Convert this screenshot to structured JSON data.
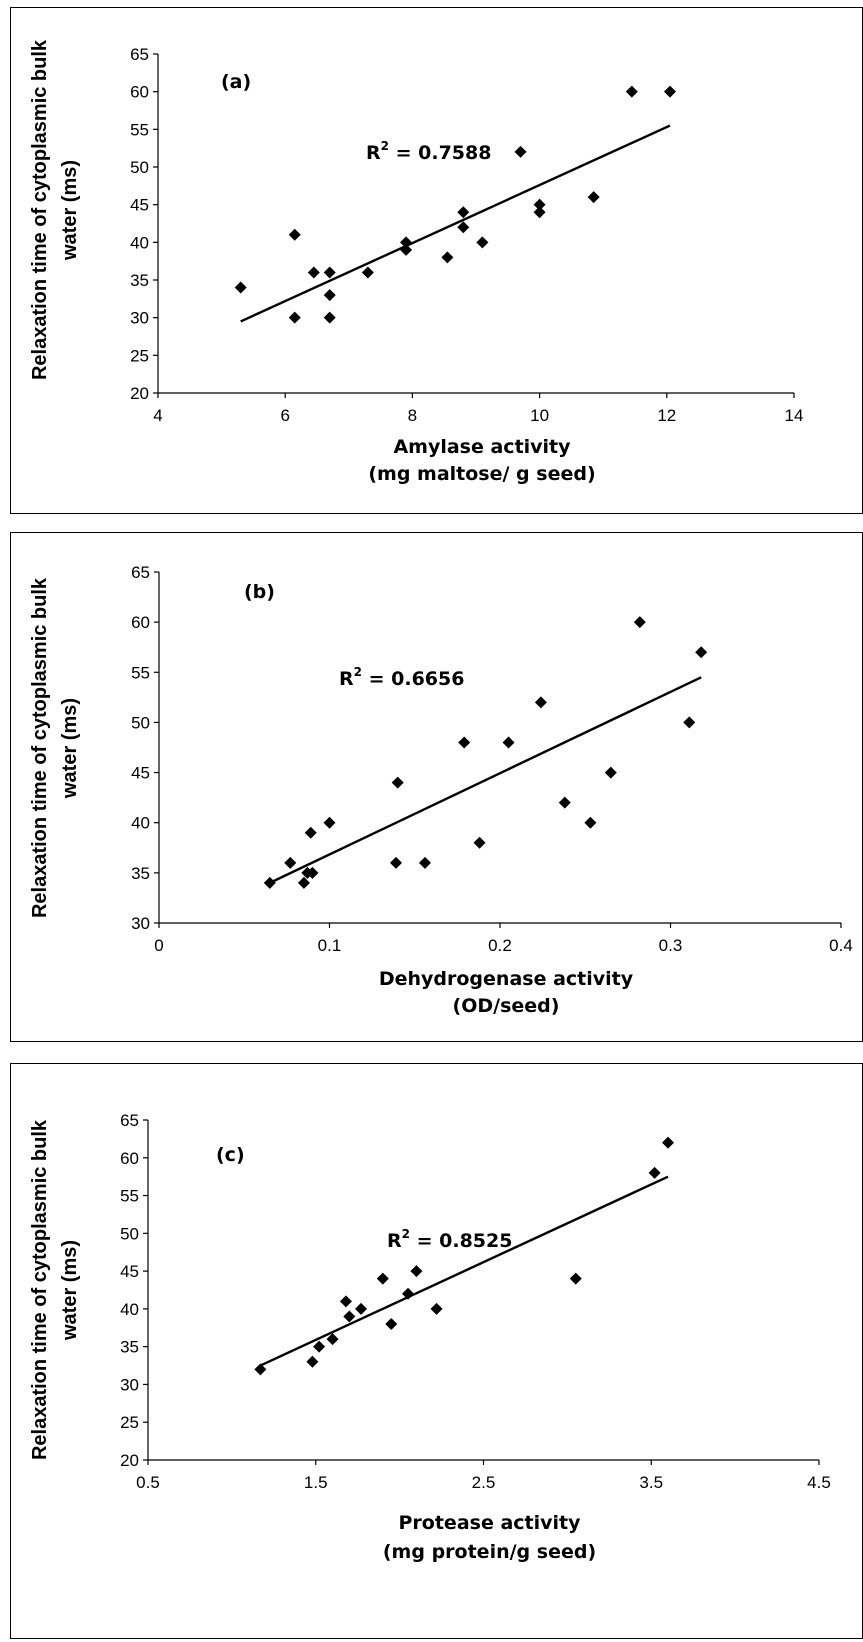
{
  "chart_data": [
    {
      "type": "scatter",
      "panel_label": "(a)",
      "xlabel_line1": "Amylase activity",
      "xlabel_line2": "(mg maltose/ g seed)",
      "ylabel_line1": "Relaxation time of cytoplasmic bulk",
      "ylabel_line2": "water (ms)",
      "xlim": [
        4,
        14
      ],
      "ylim": [
        20,
        65
      ],
      "xticks": [
        "4",
        "6",
        "8",
        "10",
        "12",
        "14"
      ],
      "yticks": [
        "20",
        "25",
        "30",
        "35",
        "40",
        "45",
        "50",
        "55",
        "60",
        "65"
      ],
      "r2_prefix": "R",
      "r2_sup": "2",
      "r2_value": " = 0.7588",
      "points": [
        [
          5.3,
          34
        ],
        [
          6.15,
          41
        ],
        [
          6.15,
          30
        ],
        [
          6.45,
          36
        ],
        [
          6.7,
          36
        ],
        [
          6.7,
          33
        ],
        [
          6.7,
          30
        ],
        [
          7.3,
          36
        ],
        [
          7.9,
          40
        ],
        [
          7.9,
          39
        ],
        [
          8.55,
          38
        ],
        [
          8.8,
          44
        ],
        [
          8.8,
          42
        ],
        [
          9.1,
          40
        ],
        [
          9.7,
          52
        ],
        [
          10.0,
          45
        ],
        [
          10.0,
          44
        ],
        [
          10.85,
          46
        ],
        [
          11.45,
          60
        ],
        [
          12.05,
          60
        ]
      ],
      "trendline": [
        [
          5.3,
          29.5
        ],
        [
          12.05,
          55.5
        ]
      ],
      "grid": false,
      "legend": "none"
    },
    {
      "type": "scatter",
      "panel_label": "(b)",
      "xlabel_line1": "Dehydrogenase activity",
      "xlabel_line2": "(OD/seed)",
      "ylabel_line1": "Relaxation time of cytoplasmic bulk",
      "ylabel_line2": "water (ms)",
      "xlim": [
        0,
        0.4
      ],
      "ylim": [
        30,
        65
      ],
      "xticks": [
        "0",
        "0.1",
        "0.2",
        "0.3",
        "0.4"
      ],
      "yticks": [
        "30",
        "35",
        "40",
        "45",
        "50",
        "55",
        "60",
        "65"
      ],
      "r2_prefix": "R",
      "r2_sup": "2",
      "r2_value": " = 0.6656",
      "points": [
        [
          0.065,
          34
        ],
        [
          0.077,
          36
        ],
        [
          0.085,
          34
        ],
        [
          0.087,
          35
        ],
        [
          0.089,
          39
        ],
        [
          0.09,
          35
        ],
        [
          0.1,
          40
        ],
        [
          0.139,
          36
        ],
        [
          0.14,
          44
        ],
        [
          0.156,
          36
        ],
        [
          0.179,
          48
        ],
        [
          0.188,
          38
        ],
        [
          0.205,
          48
        ],
        [
          0.224,
          52
        ],
        [
          0.238,
          42
        ],
        [
          0.253,
          40
        ],
        [
          0.265,
          45
        ],
        [
          0.282,
          60
        ],
        [
          0.311,
          50
        ],
        [
          0.318,
          57
        ]
      ],
      "trendline": [
        [
          0.065,
          34
        ],
        [
          0.318,
          54.5
        ]
      ],
      "grid": false,
      "legend": "none"
    },
    {
      "type": "scatter",
      "panel_label": "(c)",
      "xlabel_line1": "Protease activity",
      "xlabel_line2": "(mg protein/g seed)",
      "ylabel_line1": "Relaxation time of cytoplasmic bulk",
      "ylabel_line2": "water (ms)",
      "xlim": [
        0.5,
        4.5
      ],
      "ylim": [
        20,
        65
      ],
      "xticks": [
        "0.5",
        "1.5",
        "2.5",
        "3.5",
        "4.5"
      ],
      "yticks": [
        "20",
        "25",
        "30",
        "35",
        "40",
        "45",
        "50",
        "55",
        "60",
        "65"
      ],
      "r2_prefix": "R",
      "r2_sup": "2",
      "r2_value": " = 0.8525",
      "points": [
        [
          1.17,
          32
        ],
        [
          1.48,
          33
        ],
        [
          1.52,
          35
        ],
        [
          1.6,
          36
        ],
        [
          1.68,
          41
        ],
        [
          1.7,
          39
        ],
        [
          1.77,
          40
        ],
        [
          1.9,
          44
        ],
        [
          1.95,
          38
        ],
        [
          2.05,
          42
        ],
        [
          2.1,
          45
        ],
        [
          2.22,
          40
        ],
        [
          3.05,
          44
        ],
        [
          3.52,
          58
        ],
        [
          3.6,
          62
        ]
      ],
      "trendline": [
        [
          1.17,
          32.5
        ],
        [
          3.6,
          57.5
        ]
      ],
      "grid": false,
      "legend": "none"
    }
  ]
}
